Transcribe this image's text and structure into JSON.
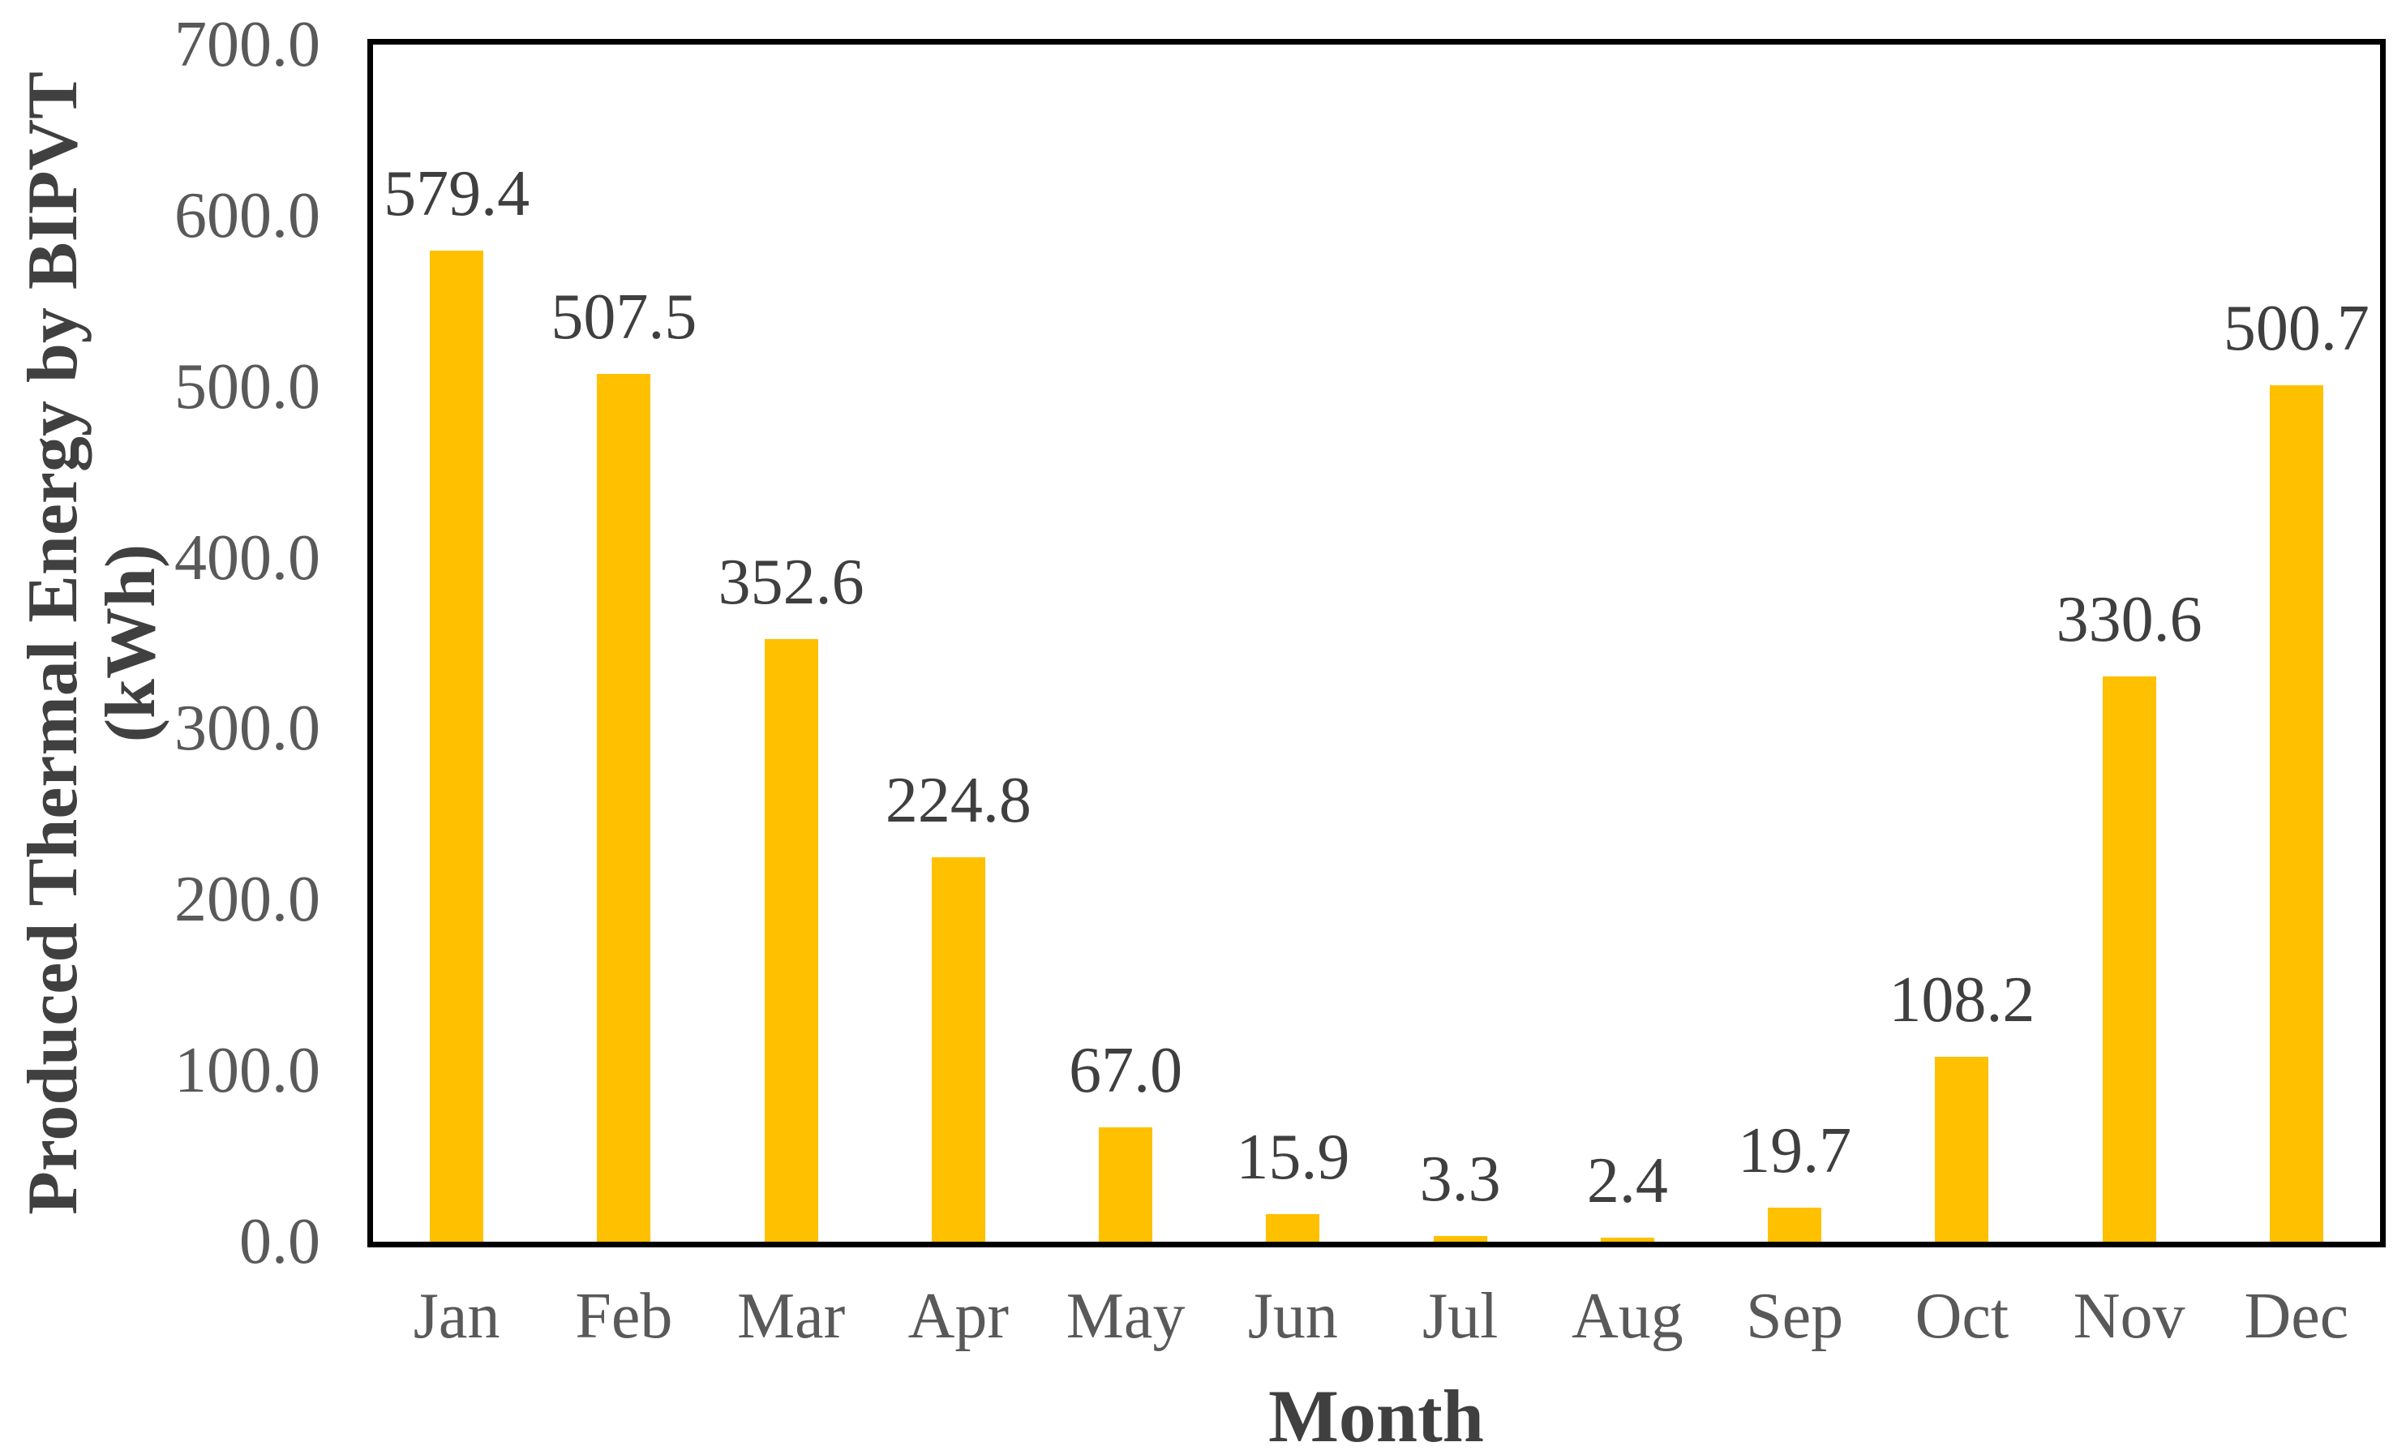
{
  "chart_data": {
    "type": "bar",
    "title": "",
    "categories": [
      "Jan",
      "Feb",
      "Mar",
      "Apr",
      "May",
      "Jun",
      "Jul",
      "Aug",
      "Sep",
      "Oct",
      "Nov",
      "Dec"
    ],
    "values": [
      579.4,
      507.5,
      352.6,
      224.8,
      67.0,
      15.9,
      3.3,
      2.4,
      19.7,
      108.2,
      330.6,
      500.7
    ],
    "value_labels": [
      "579.4",
      "507.5",
      "352.6",
      "224.8",
      "67.0",
      "15.9",
      "3.3",
      "2.4",
      "19.7",
      "108.2",
      "330.6",
      "500.7"
    ],
    "xlabel": "Month",
    "ylabel_line1": "Produced Thermal Energy by BIPVT",
    "ylabel_line2": "(kWh)",
    "ylim": [
      0,
      700
    ],
    "ytick_step": 100,
    "ytick_labels": [
      "700.0",
      "600.0",
      "500.0",
      "400.0",
      "300.0",
      "200.0",
      "100.0",
      "0.0"
    ],
    "grid": false,
    "legend": false,
    "colors": {
      "bar": "#FFC000",
      "value_label": "#3F3F3F",
      "tick_label": "#595959",
      "axis_title": "#404040",
      "axis_line": "#000000",
      "background": "#FFFFFF"
    }
  }
}
